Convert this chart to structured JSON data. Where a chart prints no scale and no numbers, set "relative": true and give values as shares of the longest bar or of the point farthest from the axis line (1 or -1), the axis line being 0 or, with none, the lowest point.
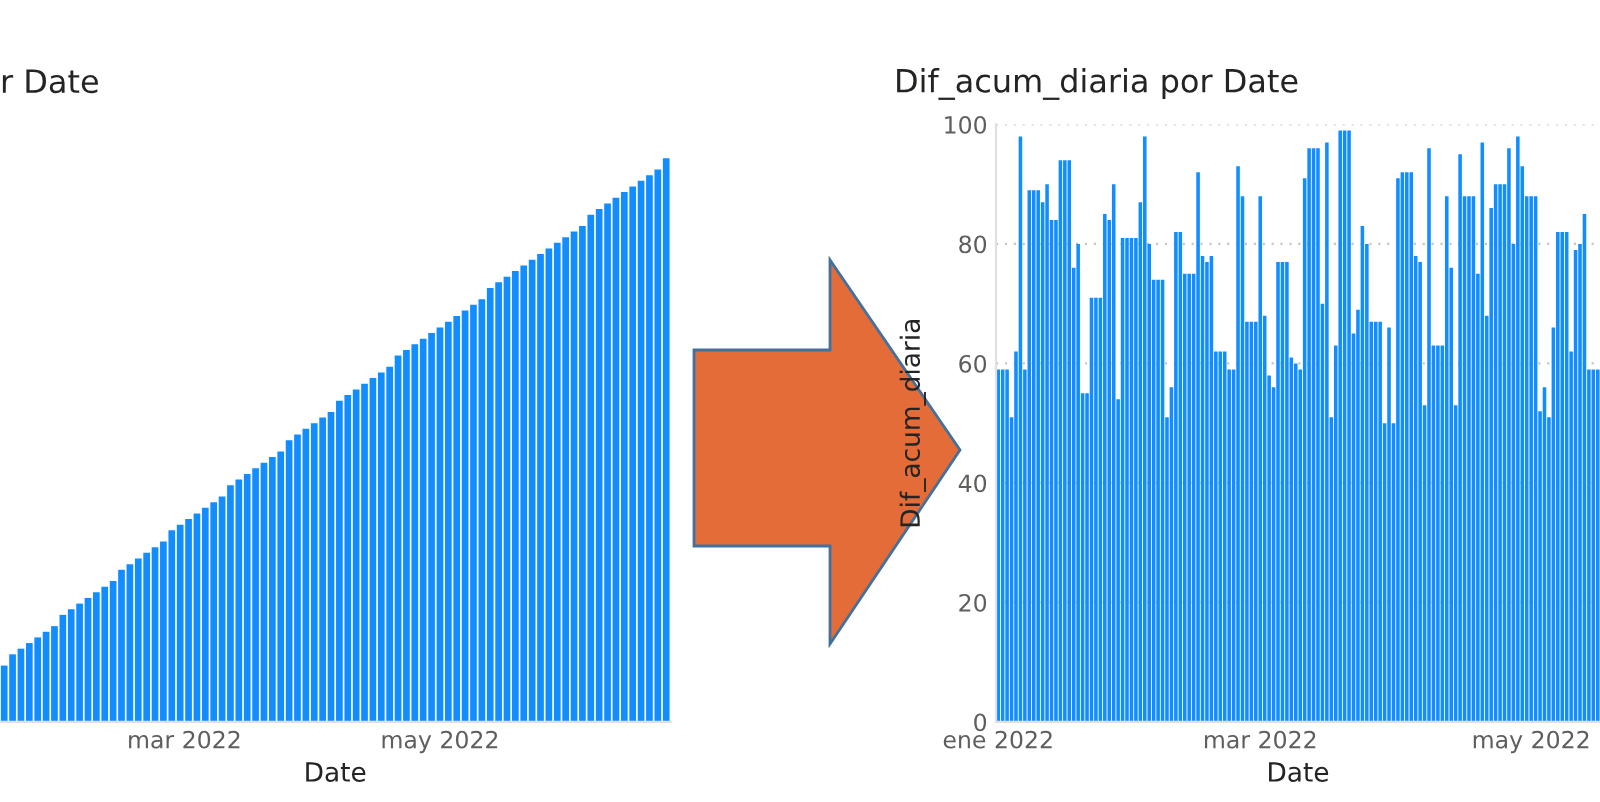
{
  "chart_data": [
    {
      "type": "bar",
      "title": "r Date",
      "xlabel": "Date",
      "relative": true,
      "color": "#118dff",
      "grid": false,
      "xlim": [
        "2022-01-16",
        "2022-06-25"
      ],
      "xticks": [
        {
          "value": "2022-03-01",
          "label": "mar 2022"
        },
        {
          "value": "2022-05-01",
          "label": "may 2022"
        }
      ],
      "x": [
        "2022-01-17",
        "2022-01-19",
        "2022-01-21",
        "2022-01-23",
        "2022-01-25",
        "2022-01-27",
        "2022-01-29",
        "2022-01-31",
        "2022-02-02",
        "2022-02-04",
        "2022-02-06",
        "2022-02-08",
        "2022-02-10",
        "2022-02-12",
        "2022-02-14",
        "2022-02-16",
        "2022-02-18",
        "2022-02-20",
        "2022-02-22",
        "2022-02-24",
        "2022-02-26",
        "2022-02-28",
        "2022-03-02",
        "2022-03-04",
        "2022-03-06",
        "2022-03-08",
        "2022-03-10",
        "2022-03-12",
        "2022-03-14",
        "2022-03-16",
        "2022-03-18",
        "2022-03-20",
        "2022-03-22",
        "2022-03-24",
        "2022-03-26",
        "2022-03-28",
        "2022-03-30",
        "2022-04-01",
        "2022-04-03",
        "2022-04-05",
        "2022-04-07",
        "2022-04-09",
        "2022-04-11",
        "2022-04-13",
        "2022-04-15",
        "2022-04-17",
        "2022-04-19",
        "2022-04-21",
        "2022-04-23",
        "2022-04-25",
        "2022-04-27",
        "2022-04-29",
        "2022-05-01",
        "2022-05-03",
        "2022-05-05",
        "2022-05-07",
        "2022-05-09",
        "2022-05-11",
        "2022-05-13",
        "2022-05-15",
        "2022-05-17",
        "2022-05-19",
        "2022-05-21",
        "2022-05-23",
        "2022-05-25",
        "2022-05-27",
        "2022-05-29",
        "2022-05-31",
        "2022-06-02",
        "2022-06-04",
        "2022-06-06",
        "2022-06-08",
        "2022-06-10",
        "2022-06-12",
        "2022-06-14",
        "2022-06-16",
        "2022-06-18",
        "2022-06-20",
        "2022-06-22",
        "2022-06-24"
      ],
      "values": [
        0.1,
        0.12,
        0.13,
        0.14,
        0.15,
        0.16,
        0.17,
        0.19,
        0.2,
        0.21,
        0.22,
        0.23,
        0.24,
        0.25,
        0.27,
        0.28,
        0.29,
        0.3,
        0.31,
        0.32,
        0.34,
        0.35,
        0.36,
        0.37,
        0.38,
        0.39,
        0.4,
        0.42,
        0.43,
        0.44,
        0.45,
        0.46,
        0.47,
        0.48,
        0.5,
        0.51,
        0.52,
        0.53,
        0.54,
        0.55,
        0.57,
        0.58,
        0.59,
        0.6,
        0.61,
        0.62,
        0.63,
        0.65,
        0.66,
        0.67,
        0.68,
        0.69,
        0.7,
        0.71,
        0.72,
        0.73,
        0.74,
        0.75,
        0.77,
        0.78,
        0.79,
        0.8,
        0.81,
        0.82,
        0.83,
        0.84,
        0.85,
        0.86,
        0.87,
        0.88,
        0.9,
        0.91,
        0.92,
        0.93,
        0.94,
        0.95,
        0.96,
        0.97,
        0.98,
        1
      ]
    },
    {
      "type": "bar",
      "title": "Dif_acum_diaria por Date",
      "xlabel": "Date",
      "ylabel": "Dif_acum_diaria",
      "color": "#118dff",
      "grid": "y",
      "xlim": [
        "2021-12-31T12:00",
        "2022-05-16T12:00"
      ],
      "xticks": [
        {
          "value": "2022-01-01",
          "label": "ene 2022"
        },
        {
          "value": "2022-03-01",
          "label": "mar 2022"
        },
        {
          "value": "2022-05-01",
          "label": "may 2022"
        }
      ],
      "ylim": [
        0,
        100
      ],
      "yticks": [
        0,
        20,
        40,
        60,
        80,
        100
      ],
      "x": [
        "2022-01-01",
        "2022-01-02",
        "2022-01-03",
        "2022-01-04",
        "2022-01-05",
        "2022-01-06",
        "2022-01-07",
        "2022-01-08",
        "2022-01-09",
        "2022-01-10",
        "2022-01-11",
        "2022-01-12",
        "2022-01-13",
        "2022-01-14",
        "2022-01-15",
        "2022-01-16",
        "2022-01-17",
        "2022-01-18",
        "2022-01-19",
        "2022-01-20",
        "2022-01-21",
        "2022-01-22",
        "2022-01-23",
        "2022-01-24",
        "2022-01-25",
        "2022-01-26",
        "2022-01-27",
        "2022-01-28",
        "2022-01-29",
        "2022-01-30",
        "2022-01-31",
        "2022-02-01",
        "2022-02-02",
        "2022-02-03",
        "2022-02-04",
        "2022-02-05",
        "2022-02-06",
        "2022-02-07",
        "2022-02-08",
        "2022-02-09",
        "2022-02-10",
        "2022-02-11",
        "2022-02-12",
        "2022-02-13",
        "2022-02-14",
        "2022-02-15",
        "2022-02-16",
        "2022-02-17",
        "2022-02-18",
        "2022-02-19",
        "2022-02-20",
        "2022-02-21",
        "2022-02-22",
        "2022-02-23",
        "2022-02-24",
        "2022-02-25",
        "2022-02-26",
        "2022-02-27",
        "2022-02-28",
        "2022-03-01",
        "2022-03-02",
        "2022-03-03",
        "2022-03-04",
        "2022-03-05",
        "2022-03-06",
        "2022-03-07",
        "2022-03-08",
        "2022-03-09",
        "2022-03-10",
        "2022-03-11",
        "2022-03-12",
        "2022-03-13",
        "2022-03-14",
        "2022-03-15",
        "2022-03-16",
        "2022-03-17",
        "2022-03-18",
        "2022-03-19",
        "2022-03-20",
        "2022-03-21",
        "2022-03-22",
        "2022-03-23",
        "2022-03-24",
        "2022-03-25",
        "2022-03-26",
        "2022-03-27",
        "2022-03-28",
        "2022-03-29",
        "2022-03-30",
        "2022-03-31",
        "2022-04-01",
        "2022-04-02",
        "2022-04-03",
        "2022-04-04",
        "2022-04-05",
        "2022-04-06",
        "2022-04-07",
        "2022-04-08",
        "2022-04-09",
        "2022-04-10",
        "2022-04-11",
        "2022-04-12",
        "2022-04-13",
        "2022-04-14",
        "2022-04-15",
        "2022-04-16",
        "2022-04-17",
        "2022-04-18",
        "2022-04-19",
        "2022-04-20",
        "2022-04-21",
        "2022-04-22",
        "2022-04-23",
        "2022-04-24",
        "2022-04-25",
        "2022-04-26",
        "2022-04-27",
        "2022-04-28",
        "2022-04-29",
        "2022-04-30",
        "2022-05-01",
        "2022-05-02",
        "2022-05-03",
        "2022-05-04",
        "2022-05-05",
        "2022-05-06",
        "2022-05-07",
        "2022-05-08",
        "2022-05-09",
        "2022-05-10",
        "2022-05-11",
        "2022-05-12",
        "2022-05-13",
        "2022-05-14",
        "2022-05-15",
        "2022-05-16"
      ],
      "values": [
        59,
        59,
        59,
        51,
        62,
        98,
        59,
        89,
        89,
        89,
        87,
        90,
        84,
        84,
        94,
        94,
        94,
        76,
        80,
        55,
        55,
        71,
        71,
        71,
        85,
        84,
        90,
        54,
        81,
        81,
        81,
        81,
        87,
        98,
        80,
        74,
        74,
        74,
        51,
        56,
        82,
        82,
        75,
        75,
        75,
        92,
        78,
        77,
        78,
        62,
        62,
        62,
        59,
        59,
        93,
        88,
        67,
        67,
        67,
        88,
        68,
        58,
        56,
        77,
        77,
        77,
        61,
        60,
        59,
        91,
        96,
        96,
        96,
        70,
        97,
        51,
        63,
        99,
        99,
        99,
        65,
        69,
        83,
        80,
        67,
        67,
        67,
        50,
        66,
        50,
        91,
        92,
        92,
        92,
        78,
        77,
        53,
        96,
        63,
        63,
        63,
        88,
        76,
        53,
        95,
        88,
        88,
        88,
        75,
        97,
        68,
        86,
        90,
        90,
        90,
        96,
        80,
        98,
        93,
        88,
        88,
        88,
        52,
        56,
        51,
        66,
        82,
        82,
        82,
        62,
        79,
        80,
        85,
        59,
        59,
        59
      ]
    }
  ]
}
